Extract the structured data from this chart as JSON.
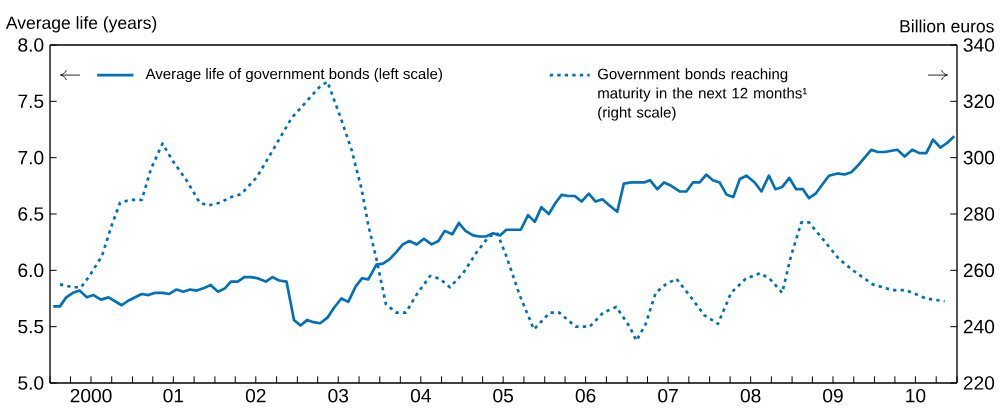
{
  "chart_data": {
    "type": "line",
    "ylabel": "Average life (years)",
    "y2label": "Billion euros",
    "xlim": [
      "2000-01-01",
      "2011-01-01"
    ],
    "xticks": [
      {
        "value": "2000-01-01",
        "label": null
      },
      {
        "value": "2000-04-01",
        "label": null
      },
      {
        "value": "2000-07-01",
        "label": "2000"
      },
      {
        "value": "2000-10-01",
        "label": null
      },
      {
        "value": "2001-01-01",
        "label": null
      },
      {
        "value": "2001-04-01",
        "label": null
      },
      {
        "value": "2001-07-01",
        "label": "01"
      },
      {
        "value": "2001-10-01",
        "label": null
      },
      {
        "value": "2002-01-01",
        "label": null
      },
      {
        "value": "2002-04-01",
        "label": null
      },
      {
        "value": "2002-07-01",
        "label": "02"
      },
      {
        "value": "2002-10-01",
        "label": null
      },
      {
        "value": "2003-01-01",
        "label": null
      },
      {
        "value": "2003-04-01",
        "label": null
      },
      {
        "value": "2003-07-01",
        "label": "03"
      },
      {
        "value": "2003-10-01",
        "label": null
      },
      {
        "value": "2004-01-01",
        "label": null
      },
      {
        "value": "2004-04-01",
        "label": null
      },
      {
        "value": "2004-07-01",
        "label": "04"
      },
      {
        "value": "2004-10-01",
        "label": null
      },
      {
        "value": "2005-01-01",
        "label": null
      },
      {
        "value": "2005-04-01",
        "label": null
      },
      {
        "value": "2005-07-01",
        "label": "05"
      },
      {
        "value": "2005-10-01",
        "label": null
      },
      {
        "value": "2006-01-01",
        "label": null
      },
      {
        "value": "2006-04-01",
        "label": null
      },
      {
        "value": "2006-07-01",
        "label": "06"
      },
      {
        "value": "2006-10-01",
        "label": null
      },
      {
        "value": "2007-01-01",
        "label": null
      },
      {
        "value": "2007-04-01",
        "label": null
      },
      {
        "value": "2007-07-01",
        "label": "07"
      },
      {
        "value": "2007-10-01",
        "label": null
      },
      {
        "value": "2008-01-01",
        "label": null
      },
      {
        "value": "2008-04-01",
        "label": null
      },
      {
        "value": "2008-07-01",
        "label": "08"
      },
      {
        "value": "2008-10-01",
        "label": null
      },
      {
        "value": "2009-01-01",
        "label": null
      },
      {
        "value": "2009-04-01",
        "label": null
      },
      {
        "value": "2009-07-01",
        "label": "09"
      },
      {
        "value": "2009-10-01",
        "label": null
      },
      {
        "value": "2010-01-01",
        "label": null
      },
      {
        "value": "2010-04-01",
        "label": null
      },
      {
        "value": "2010-07-01",
        "label": "10"
      },
      {
        "value": "2010-10-01",
        "label": null
      },
      {
        "value": "2011-01-01",
        "label": null
      }
    ],
    "ylim": [
      5,
      8
    ],
    "yticks": [
      {
        "value": 5,
        "label": "5.0"
      },
      {
        "value": 5.5,
        "label": "5.5"
      },
      {
        "value": 6,
        "label": "6.0"
      },
      {
        "value": 6.5,
        "label": "6.5"
      },
      {
        "value": 7,
        "label": "7.0"
      },
      {
        "value": 7.5,
        "label": "7.5"
      },
      {
        "value": 8,
        "label": "8.0"
      }
    ],
    "y2lim": [
      220,
      340
    ],
    "y2ticks": [
      220,
      240,
      260,
      280,
      300,
      320,
      340
    ],
    "legend": "top",
    "marker": "none",
    "series": [
      {
        "name": "Average life of government bonds (left scale)",
        "color": "#0070b8",
        "line_style": "solid",
        "axis": "y",
        "x": [
          "2000-01-15",
          "2000-02-14",
          "2000-03-13",
          "2000-04-12",
          "2000-05-11",
          "2000-06-13",
          "2000-07-12",
          "2000-08-14",
          "2000-09-17",
          "2000-11-14",
          "2000-12-13",
          "2001-02-11",
          "2001-03-13",
          "2001-04-12",
          "2001-05-14",
          "2001-06-13",
          "2001-07-15",
          "2001-08-14",
          "2001-09-13",
          "2001-10-12",
          "2001-11-11",
          "2001-12-13",
          "2002-01-15",
          "2002-02-14",
          "2002-03-13",
          "2002-04-12",
          "2002-05-11",
          "2002-06-09",
          "2002-07-08",
          "2002-08-14",
          "2002-09-13",
          "2002-10-12",
          "2002-11-14",
          "2002-12-17",
          "2003-01-15",
          "2003-02-14",
          "2003-03-13",
          "2003-04-12",
          "2003-05-14",
          "2003-06-13",
          "2003-07-15",
          "2003-08-14",
          "2003-09-17",
          "2003-10-15",
          "2003-11-11",
          "2003-12-17",
          "2004-01-15",
          "2004-02-14",
          "2004-03-13",
          "2004-04-12",
          "2004-05-11",
          "2004-06-13",
          "2004-07-15",
          "2004-08-18",
          "2004-09-17",
          "2004-10-15",
          "2004-11-18",
          "2004-12-17",
          "2005-01-15",
          "2005-02-18",
          "2005-03-17",
          "2005-04-15",
          "2005-05-18",
          "2005-06-17",
          "2005-07-15",
          "2005-08-21",
          "2005-09-17",
          "2005-10-19",
          "2005-11-18",
          "2005-12-17",
          "2006-01-19",
          "2006-02-18",
          "2006-03-17",
          "2006-04-15",
          "2006-05-14",
          "2006-06-13",
          "2006-07-15",
          "2006-08-14",
          "2006-09-13",
          "2006-10-12",
          "2006-11-18",
          "2006-12-17",
          "2007-01-19",
          "2007-02-18",
          "2007-03-17",
          "2007-04-12",
          "2007-05-14",
          "2007-06-13",
          "2007-07-15",
          "2007-08-21",
          "2007-09-20",
          "2007-10-19",
          "2007-11-18",
          "2007-12-17",
          "2008-01-15",
          "2008-02-14",
          "2008-03-17",
          "2008-04-15",
          "2008-05-14",
          "2008-06-13",
          "2008-07-19",
          "2008-08-18",
          "2008-09-20",
          "2008-10-19",
          "2008-11-18",
          "2008-12-20",
          "2009-01-19",
          "2009-02-18",
          "2009-03-17",
          "2009-04-15",
          "2009-05-14",
          "2009-06-13",
          "2009-07-22",
          "2009-08-21",
          "2009-09-20",
          "2009-10-19",
          "2009-12-17",
          "2010-01-15",
          "2010-02-14",
          "2010-04-12",
          "2010-05-14",
          "2010-06-17",
          "2010-07-19",
          "2010-08-18",
          "2010-09-17",
          "2010-10-19",
          "2010-11-18",
          "2010-12-20"
        ],
        "values": [
          5.68,
          5.68,
          5.76,
          5.8,
          5.82,
          5.76,
          5.78,
          5.74,
          5.76,
          5.69,
          5.73,
          5.79,
          5.78,
          5.8,
          5.8,
          5.79,
          5.83,
          5.81,
          5.83,
          5.82,
          5.84,
          5.87,
          5.81,
          5.84,
          5.9,
          5.9,
          5.94,
          5.94,
          5.93,
          5.9,
          5.94,
          5.91,
          5.9,
          5.56,
          5.51,
          5.56,
          5.54,
          5.53,
          5.58,
          5.67,
          5.75,
          5.72,
          5.86,
          5.93,
          5.92,
          6.05,
          6.06,
          6.1,
          6.16,
          6.23,
          6.26,
          6.23,
          6.28,
          6.23,
          6.26,
          6.35,
          6.32,
          6.42,
          6.35,
          6.31,
          6.3,
          6.3,
          6.33,
          6.31,
          6.36,
          6.36,
          6.36,
          6.49,
          6.43,
          6.56,
          6.5,
          6.6,
          6.67,
          6.66,
          6.66,
          6.61,
          6.68,
          6.61,
          6.63,
          6.58,
          6.52,
          6.77,
          6.78,
          6.78,
          6.78,
          6.8,
          6.72,
          6.78,
          6.75,
          6.7,
          6.7,
          6.78,
          6.78,
          6.85,
          6.8,
          6.78,
          6.67,
          6.65,
          6.81,
          6.84,
          6.78,
          6.7,
          6.84,
          6.72,
          6.74,
          6.82,
          6.72,
          6.72,
          6.64,
          6.68,
          6.76,
          6.84,
          6.86,
          6.85,
          6.87,
          6.93,
          7.07,
          7.05,
          7.05,
          7.07,
          7.01,
          7.07,
          7.04,
          7.04,
          7.16,
          7.09,
          7.13,
          7.19
        ]
      },
      {
        "name": "Government bonds reaching maturity in the next 12 months¹ (right scale)",
        "color": "#0070b8",
        "line_style": "dotted",
        "axis": "y2",
        "x": [
          "2000-02-14",
          "2000-04-12",
          "2000-05-18",
          "2000-06-24",
          "2000-08-18",
          "2000-10-01",
          "2000-11-07",
          "2000-12-20",
          "2001-02-11",
          "2001-03-24",
          "2001-05-14",
          "2001-06-27",
          "2001-08-28",
          "2001-10-26",
          "2001-12-02",
          "2002-01-23",
          "2002-03-13",
          "2002-04-26",
          "2002-07-05",
          "2002-09-17",
          "2002-12-06",
          "2003-02-11",
          "2003-04-08",
          "2003-05-14",
          "2003-07-08",
          "2003-08-28",
          "2003-10-12",
          "2003-11-11",
          "2003-12-17",
          "2004-01-28",
          "2004-03-13",
          "2004-04-26",
          "2004-06-09",
          "2004-08-11",
          "2004-09-24",
          "2004-11-07",
          "2005-01-05",
          "2005-03-02",
          "2005-04-28",
          "2005-06-06",
          "2005-07-15",
          "2005-09-13",
          "2005-11-14",
          "2006-01-23",
          "2006-03-06",
          "2006-05-18",
          "2006-07-19",
          "2006-09-17",
          "2006-11-14",
          "2007-01-12",
          "2007-02-11",
          "2007-03-24",
          "2007-05-07",
          "2007-06-20",
          "2007-08-07",
          "2007-10-05",
          "2007-12-09",
          "2008-02-07",
          "2008-04-05",
          "2008-06-09",
          "2008-08-11",
          "2008-09-24",
          "2008-11-18",
          "2008-12-27",
          "2009-02-11",
          "2009-03-17",
          "2009-05-28",
          "2009-07-28",
          "2009-09-27",
          "2009-12-24",
          "2010-03-20",
          "2010-05-18",
          "2010-08-18",
          "2010-11-07"
        ],
        "values": [
          255,
          254,
          254,
          258,
          265,
          276,
          284,
          285,
          285,
          296,
          305,
          299,
          292,
          284,
          283,
          284,
          286,
          287,
          293,
          303,
          314,
          320,
          325,
          327,
          315,
          303,
          289,
          276,
          264,
          248,
          245,
          245,
          251,
          258,
          257,
          254,
          259,
          266,
          272,
          273,
          265,
          251,
          239,
          245,
          245,
          240,
          240,
          245,
          247,
          240,
          235,
          241,
          252,
          255,
          257,
          251,
          244,
          241,
          252,
          257,
          259,
          257,
          252,
          265,
          277,
          277,
          270,
          264,
          260,
          255,
          253,
          253,
          250,
          249
        ]
      }
    ]
  }
}
